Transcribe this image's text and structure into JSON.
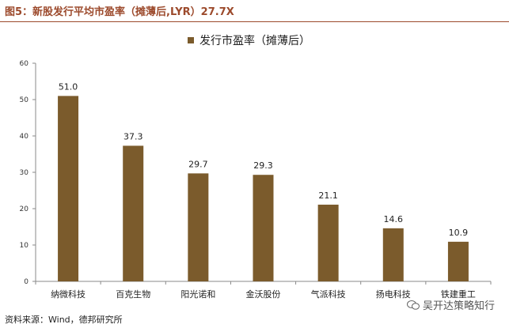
{
  "figure": {
    "title": "图5：新股发行平均市盈率（摊薄后,LYR）27.7X",
    "source": "资料来源：Wind，德邦研究所",
    "watermark": "吴开达策略知行",
    "watermark_icon": "wechat-icon"
  },
  "colors": {
    "bar": "#7b5b2c",
    "title": "#9c4a2c",
    "axis": "#8a8a8a"
  },
  "chart_data": {
    "type": "bar",
    "categories": [
      "纳微科技",
      "百克生物",
      "阳光诺和",
      "金沃股份",
      "气派科技",
      "扬电科技",
      "铁建重工"
    ],
    "series": [
      {
        "name": "发行市盈率（摊薄后）",
        "values": [
          51.0,
          37.3,
          29.7,
          29.3,
          21.1,
          14.6,
          10.9
        ]
      }
    ],
    "data_labels": [
      "51.0",
      "37.3",
      "29.7",
      "29.3",
      "21.1",
      "14.6",
      "10.9"
    ],
    "ylim": [
      0,
      60
    ],
    "yticks": [
      0,
      10,
      20,
      30,
      40,
      50,
      60
    ],
    "ytick_labels": [
      "0",
      "10",
      "20",
      "30",
      "40",
      "50",
      "60"
    ],
    "legend_position": "top-center",
    "grid": false
  }
}
